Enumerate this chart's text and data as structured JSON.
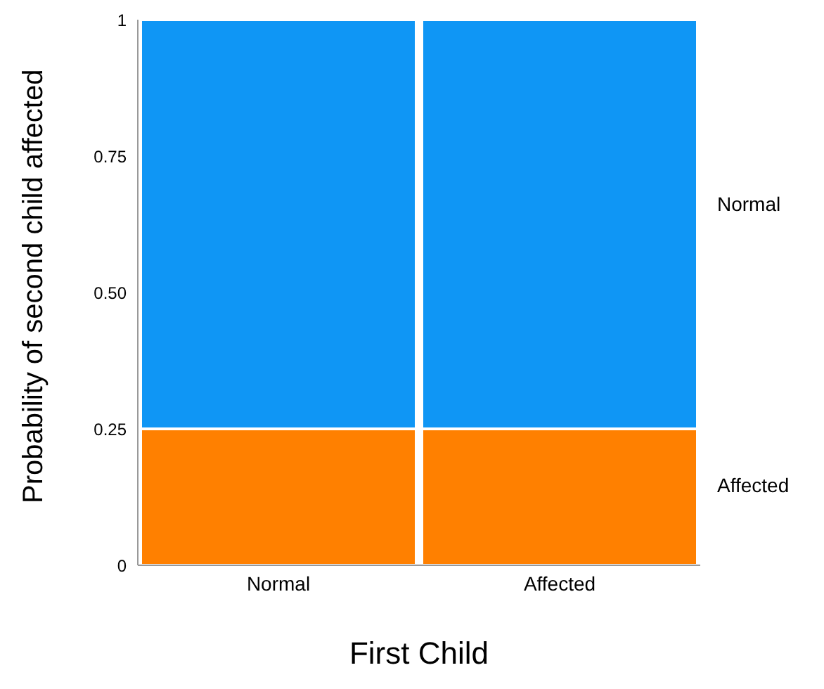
{
  "chart_data": {
    "type": "bar",
    "stacked": true,
    "xlabel": "First Child",
    "ylabel": "Probability of second child affected",
    "categories": [
      "Normal",
      "Affected"
    ],
    "series": [
      {
        "name": "Affected",
        "color": "#ff8000",
        "values": [
          0.25,
          0.25
        ]
      },
      {
        "name": "Normal",
        "color": "#0f96f5",
        "values": [
          0.75,
          0.75
        ]
      }
    ],
    "ylim": [
      0,
      1
    ],
    "yticks": [
      0,
      0.25,
      {
        "value": 0.5,
        "label": "0.50"
      },
      0.75,
      1
    ],
    "grid": false,
    "legend": "right"
  }
}
